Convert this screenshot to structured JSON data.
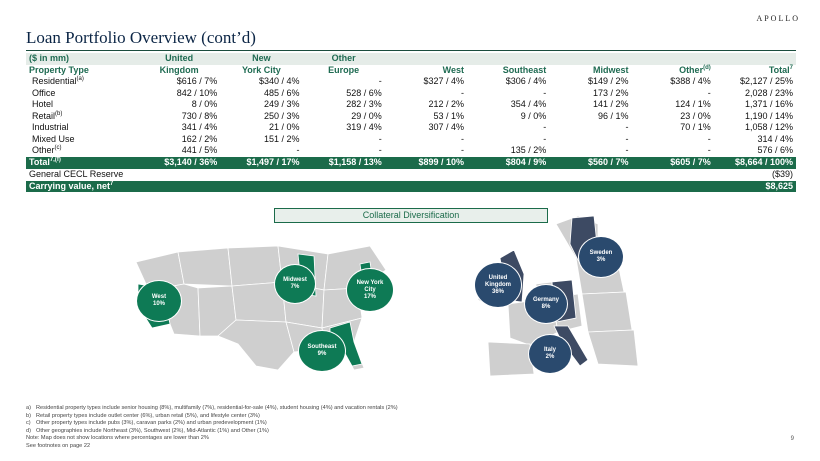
{
  "brand": "APOLLO",
  "title": "Loan Portfolio Overview (cont’d)",
  "table": {
    "units": "($ in mm)",
    "header_top": [
      "",
      "United",
      "New",
      "Other",
      "",
      "",
      "",
      "",
      ""
    ],
    "header_bottom": [
      "Property Type",
      "Kingdom",
      "York City",
      "Europe",
      "West",
      "Southeast",
      "Midwest",
      "Other",
      "Total"
    ],
    "header_bottom_sup": [
      "",
      "",
      "",
      "",
      "",
      "",
      "",
      "(d)",
      "7"
    ],
    "rows": [
      {
        "label": "Residential",
        "sup": "(a)",
        "cells": [
          "$616  / 7%",
          "$340  / 4%",
          "-",
          "$327  / 4%",
          "$306  / 4%",
          "$149  / 2%",
          "$388  / 4%",
          "$2,127  / 25%"
        ]
      },
      {
        "label": "Office",
        "sup": "",
        "cells": [
          "842  / 10%",
          "485  / 6%",
          "528  / 6%",
          "-",
          "-",
          "173  / 2%",
          "-",
          "2,028  / 23%"
        ]
      },
      {
        "label": "Hotel",
        "sup": "",
        "cells": [
          "8  / 0%",
          "249  / 3%",
          "282  / 3%",
          "212  / 2%",
          "354  / 4%",
          "141  / 2%",
          "124  / 1%",
          "1,371  / 16%"
        ]
      },
      {
        "label": "Retail",
        "sup": "(b)",
        "cells": [
          "730  / 8%",
          "250  / 3%",
          "29  / 0%",
          "53  / 1%",
          "9  / 0%",
          "96  / 1%",
          "23  / 0%",
          "1,190  / 14%"
        ]
      },
      {
        "label": "Industrial",
        "sup": "",
        "cells": [
          "341  / 4%",
          "21  / 0%",
          "319  / 4%",
          "307  / 4%",
          "-",
          "-",
          "70  / 1%",
          "1,058  / 12%"
        ]
      },
      {
        "label": "Mixed Use",
        "sup": "",
        "cells": [
          "162  / 2%",
          "151  / 2%",
          "-",
          "-",
          "-",
          "-",
          "-",
          "314  / 4%"
        ]
      },
      {
        "label": "Other",
        "sup": "(c)",
        "cells": [
          "441  / 5%",
          "-",
          "-",
          "-",
          "135  / 2%",
          "-",
          "-",
          "576  / 6%"
        ]
      }
    ],
    "total": {
      "label": "Total",
      "sup": "7,(f)",
      "cells": [
        "$3,140  / 36%",
        "$1,497  / 17%",
        "$1,158  / 13%",
        "$899  / 10%",
        "$804  / 9%",
        "$560  / 7%",
        "$605  / 7%",
        "$8,664  / 100%"
      ]
    },
    "cecl": {
      "label": "General CECL Reserve",
      "value": "($39)"
    },
    "carrying": {
      "label": "Carrying value, net",
      "sup": "7",
      "value": "$8,625"
    }
  },
  "collateral_title": "Collateral Diversification",
  "bubbles": {
    "west": {
      "name": "West",
      "pct": "10%"
    },
    "midwest": {
      "name": "Midwest",
      "pct": "7%"
    },
    "nyc": {
      "name": "New York City",
      "pct": "17%"
    },
    "southeast": {
      "name": "Southeast",
      "pct": "9%"
    },
    "uk": {
      "name": "United Kingdom",
      "pct": "36%"
    },
    "germany": {
      "name": "Germany",
      "pct": "8%"
    },
    "sweden": {
      "name": "Sweden",
      "pct": "3%"
    },
    "italy": {
      "name": "Italy",
      "pct": "2%"
    }
  },
  "colors": {
    "accent": "#1b6b4a",
    "us_bubble": "#0e7a55",
    "eu_bubble": "#2a4a6e"
  },
  "notes": [
    {
      "tag": "a)",
      "text": "Residential property types include senior housing (8%), multifamily (7%), residential-for-sale (4%), student housing (4%) and vacation rentals (2%)"
    },
    {
      "tag": "b)",
      "text": "Retail property types include outlet center (6%), urban retail (5%), and lifestyle center (3%)"
    },
    {
      "tag": "c)",
      "text": "Other property types include pubs (3%), caravan parks (2%) and urban predevelopment (1%)"
    },
    {
      "tag": "d)",
      "text": "Other geographies include Northeast (3%), Southwest (2%), Mid-Atlantic (1%) and Other (1%)"
    }
  ],
  "note_map": "Note: Map does not show locations where percentages are lower than 2%",
  "note_footnotes": "See footnotes on page 22",
  "page_number": "9"
}
